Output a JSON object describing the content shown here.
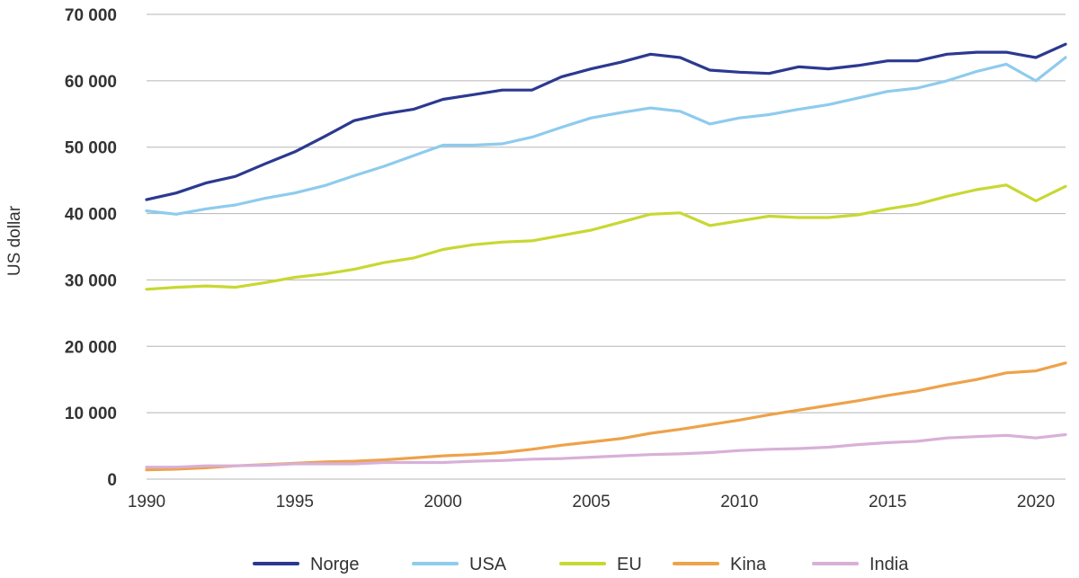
{
  "chart_data": {
    "type": "line",
    "title": "",
    "xlabel": "",
    "ylabel": "US dollar",
    "xlim": [
      1990,
      2021
    ],
    "ylim": [
      0,
      70000
    ],
    "x_ticks": [
      1990,
      1995,
      2000,
      2005,
      2010,
      2015,
      2020
    ],
    "y_ticks": [
      0,
      10000,
      20000,
      30000,
      40000,
      50000,
      60000,
      70000
    ],
    "y_tick_labels": [
      "0",
      "10 000",
      "20 000",
      "30 000",
      "40 000",
      "50 000",
      "60 000",
      "70 000"
    ],
    "grid": "horizontal",
    "legend_position": "bottom",
    "x": [
      1990,
      1991,
      1992,
      1993,
      1994,
      1995,
      1996,
      1997,
      1998,
      1999,
      2000,
      2001,
      2002,
      2003,
      2004,
      2005,
      2006,
      2007,
      2008,
      2009,
      2010,
      2011,
      2012,
      2013,
      2014,
      2015,
      2016,
      2017,
      2018,
      2019,
      2020,
      2021
    ],
    "series": [
      {
        "name": "Norge",
        "color": "#2b3990",
        "values": [
          42100,
          43100,
          44600,
          45600,
          47500,
          49300,
          51600,
          54000,
          55000,
          55700,
          57200,
          57900,
          58600,
          58600,
          60600,
          61800,
          62800,
          64000,
          63500,
          61600,
          61300,
          61100,
          62100,
          61800,
          62300,
          63000,
          63000,
          64000,
          64300,
          64300,
          63500,
          65500
        ]
      },
      {
        "name": "USA",
        "color": "#8ecbee",
        "values": [
          40400,
          39900,
          40700,
          41300,
          42300,
          43100,
          44200,
          45700,
          47100,
          48700,
          50300,
          50300,
          50500,
          51500,
          53000,
          54400,
          55200,
          55900,
          55400,
          53500,
          54400,
          54900,
          55700,
          56400,
          57400,
          58400,
          58900,
          60000,
          61400,
          62500,
          60000,
          63500
        ]
      },
      {
        "name": "EU",
        "color": "#c8d832",
        "values": [
          28600,
          28900,
          29100,
          28900,
          29600,
          30400,
          30900,
          31600,
          32600,
          33300,
          34600,
          35300,
          35700,
          35900,
          36700,
          37500,
          38700,
          39900,
          40100,
          38200,
          38900,
          39600,
          39400,
          39400,
          39800,
          40700,
          41400,
          42600,
          43600,
          44300,
          41900,
          44100
        ]
      },
      {
        "name": "Kina",
        "color": "#eea24a",
        "values": [
          1400,
          1500,
          1700,
          2000,
          2200,
          2400,
          2600,
          2700,
          2900,
          3200,
          3500,
          3700,
          4000,
          4500,
          5100,
          5600,
          6100,
          6900,
          7500,
          8200,
          8900,
          9700,
          10400,
          11100,
          11800,
          12600,
          13300,
          14200,
          15000,
          16000,
          16300,
          17500
        ]
      },
      {
        "name": "India",
        "color": "#d8b0d8",
        "values": [
          1800,
          1800,
          2000,
          2000,
          2100,
          2300,
          2300,
          2300,
          2500,
          2500,
          2500,
          2700,
          2800,
          3000,
          3100,
          3300,
          3500,
          3700,
          3800,
          4000,
          4300,
          4500,
          4600,
          4800,
          5200,
          5500,
          5700,
          6200,
          6400,
          6600,
          6200,
          6700
        ]
      }
    ]
  }
}
